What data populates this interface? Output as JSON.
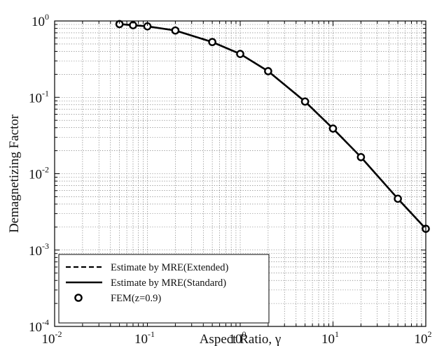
{
  "chart_data": {
    "type": "line",
    "xlabel": "Aspect Ratio, γ",
    "ylabel": "Demagnetizing Factor",
    "xscale": "log",
    "yscale": "log",
    "xlim": [
      0.01,
      100
    ],
    "ylim": [
      0.0001,
      1
    ],
    "grid": "major and minor, dotted",
    "legend_position": "bottom-left",
    "x_ticks": [
      {
        "base": "10",
        "exp": "-2"
      },
      {
        "base": "10",
        "exp": "-1"
      },
      {
        "base": "10",
        "exp": "0"
      },
      {
        "base": "10",
        "exp": "1"
      },
      {
        "base": "10",
        "exp": "2"
      }
    ],
    "y_ticks": [
      {
        "base": "10",
        "exp": "-4"
      },
      {
        "base": "10",
        "exp": "-3"
      },
      {
        "base": "10",
        "exp": "-2"
      },
      {
        "base": "10",
        "exp": "-1"
      },
      {
        "base": "10",
        "exp": "0"
      }
    ],
    "series": [
      {
        "name": "Estimate by MRE(Extended)",
        "style": "dashed",
        "color": "#000000",
        "x": [
          0.05,
          0.07,
          0.1,
          0.2,
          0.5,
          1,
          2,
          5,
          10,
          20,
          50,
          100
        ],
        "y": [
          0.91,
          0.88,
          0.85,
          0.75,
          0.53,
          0.37,
          0.22,
          0.088,
          0.039,
          0.0165,
          0.0047,
          0.0019
        ]
      },
      {
        "name": "Estimate by MRE(Standard)",
        "style": "solid",
        "color": "#000000",
        "x": [
          0.05,
          0.07,
          0.1,
          0.2,
          0.5,
          1,
          2,
          5,
          10,
          20,
          50,
          100
        ],
        "y": [
          0.91,
          0.88,
          0.85,
          0.75,
          0.53,
          0.37,
          0.22,
          0.088,
          0.039,
          0.0165,
          0.0047,
          0.0019
        ]
      },
      {
        "name": "FEM(z=0.9)",
        "style": "markers",
        "marker": "circle",
        "color": "#000000",
        "x": [
          0.05,
          0.07,
          0.1,
          0.2,
          0.5,
          1,
          2,
          5,
          10,
          20,
          50,
          100
        ],
        "y": [
          0.91,
          0.88,
          0.85,
          0.75,
          0.53,
          0.37,
          0.22,
          0.088,
          0.039,
          0.0165,
          0.0047,
          0.0019
        ]
      }
    ]
  }
}
